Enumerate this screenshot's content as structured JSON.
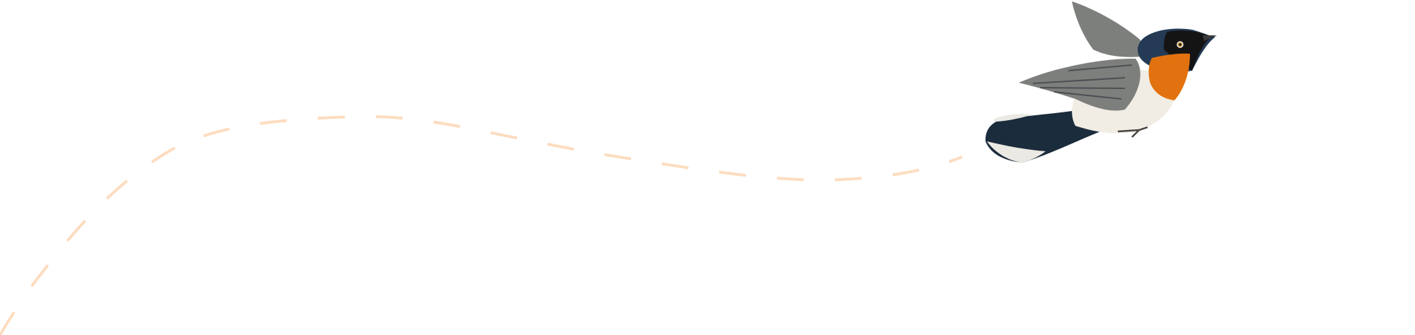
{
  "illustration": {
    "subject": "bird-in-flight",
    "colors": {
      "flight_path": "#fddcbf",
      "head": "#243a55",
      "mask": "#141414",
      "throat": "#e2720f",
      "belly": "#f1ede4",
      "wing": "#7d7f7c",
      "wing_dark": "#4c4f52",
      "tail": "#1b2c3c",
      "tail_tip": "#ebe9e3"
    }
  }
}
